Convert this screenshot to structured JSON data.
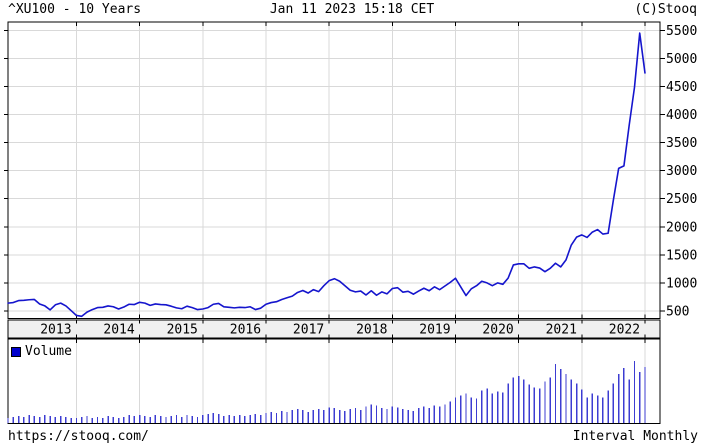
{
  "header": {
    "title": "^XU100 - 10 Years",
    "timestamp": "Jan 11 2023 15:18 CET",
    "copyright": "(C)Stooq"
  },
  "footer": {
    "url": "https://stooq.com/",
    "interval": "Interval Monthly"
  },
  "volume_legend": {
    "label": "Volume"
  },
  "colors": {
    "price_line": "#1515cd",
    "volume_bar": "#3c3cd2",
    "legend_swatch": "#0000cc",
    "grid": "#d9d9d9",
    "band_bg": "#f0f0f0",
    "border": "#000000",
    "text": "#000000",
    "background": "#ffffff"
  },
  "chart_data": [
    {
      "type": "line",
      "name": "^XU100 monthly close",
      "title": "^XU100 - 10 Years",
      "x_start": "2012-12",
      "x_end": "2023-01",
      "x_interval": "month",
      "x_tick_labels": [
        "2013",
        "2014",
        "2015",
        "2016",
        "2017",
        "2018",
        "2019",
        "2020",
        "2021",
        "2022"
      ],
      "y_ticks": [
        500,
        1000,
        1500,
        2000,
        2500,
        3000,
        3500,
        4000,
        4500,
        5000,
        5500
      ],
      "ylim": [
        366,
        5648
      ],
      "grid": true,
      "values": [
        640,
        650,
        685,
        690,
        700,
        705,
        625,
        590,
        520,
        610,
        640,
        590,
        505,
        420,
        405,
        480,
        525,
        560,
        565,
        590,
        575,
        535,
        570,
        620,
        615,
        655,
        640,
        600,
        625,
        615,
        610,
        585,
        555,
        540,
        585,
        560,
        525,
        535,
        560,
        620,
        635,
        575,
        565,
        555,
        565,
        560,
        575,
        525,
        550,
        620,
        650,
        665,
        705,
        735,
        765,
        830,
        865,
        820,
        880,
        845,
        950,
        1040,
        1075,
        1030,
        950,
        870,
        840,
        855,
        785,
        860,
        780,
        840,
        805,
        900,
        915,
        835,
        850,
        800,
        855,
        905,
        860,
        930,
        880,
        945,
        1010,
        1083,
        928,
        775,
        895,
        950,
        1030,
        1000,
        950,
        1000,
        975,
        1085,
        1320,
        1340,
        1340,
        1260,
        1285,
        1265,
        1200,
        1260,
        1350,
        1285,
        1410,
        1675,
        1815,
        1855,
        1810,
        1905,
        1950,
        1870,
        1885,
        2480,
        3040,
        3085,
        3810,
        4480,
        5450,
        4740
      ]
    },
    {
      "type": "bar",
      "name": "Volume",
      "legend": "Volume",
      "x_start": "2012-12",
      "x_interval": "month",
      "values": [
        5,
        6,
        7,
        6,
        8,
        7,
        6,
        8,
        7,
        6,
        7,
        6,
        5,
        5,
        6,
        7,
        5,
        6,
        5,
        7,
        6,
        5,
        6,
        8,
        7,
        8,
        7,
        6,
        8,
        7,
        6,
        7,
        8,
        6,
        8,
        7,
        6,
        8,
        9,
        10,
        9,
        7,
        8,
        7,
        8,
        7,
        8,
        9,
        8,
        10,
        11,
        10,
        12,
        11,
        13,
        14,
        13,
        11,
        13,
        14,
        13,
        16,
        15,
        13,
        12,
        14,
        15,
        13,
        17,
        19,
        18,
        15,
        14,
        17,
        16,
        14,
        13,
        12,
        15,
        17,
        15,
        18,
        17,
        19,
        22,
        26,
        28,
        30,
        26,
        25,
        33,
        35,
        30,
        32,
        31,
        40,
        46,
        48,
        44,
        39,
        36,
        35,
        42,
        46,
        60,
        55,
        50,
        44,
        40,
        34,
        26,
        30,
        28,
        26,
        33,
        40,
        50,
        56,
        44,
        63,
        52,
        57
      ]
    }
  ]
}
